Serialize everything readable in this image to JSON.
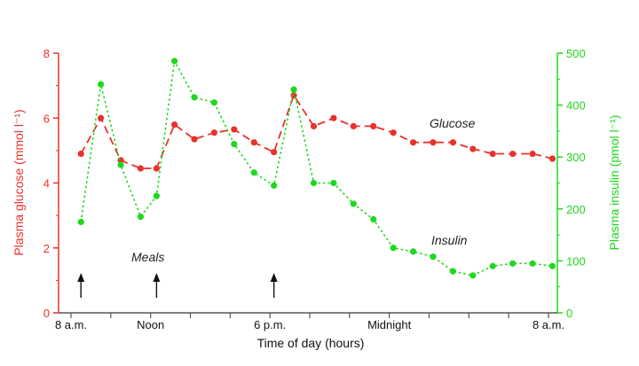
{
  "colors": {
    "glucose": "#e8322b",
    "insulin": "#1ed81e",
    "axis_x": "#555555",
    "annotation": "#222222"
  },
  "chart_data": {
    "type": "line",
    "xlabel": "Time of day (hours)",
    "x_ticks": [
      {
        "x": 0,
        "label": "8 a.m."
      },
      {
        "x": 4,
        "label": "Noon"
      },
      {
        "x": 10,
        "label": "6 p.m."
      },
      {
        "x": 16,
        "label": "Midnight"
      },
      {
        "x": 24,
        "label": "8 a.m."
      }
    ],
    "xlim": [
      0,
      24
    ],
    "left_axis": {
      "label": "Plasma glucose (mmol l⁻¹)",
      "ylim": [
        0,
        8
      ],
      "ticks": [
        "0",
        "2",
        "4",
        "6",
        "8"
      ]
    },
    "right_axis": {
      "label": "Plasma insulin (pmol l⁻¹)",
      "ylim": [
        0,
        500
      ],
      "ticks": [
        "0",
        "100",
        "200",
        "300",
        "400",
        "500"
      ]
    },
    "series": [
      {
        "name": "Glucose",
        "axis": "left",
        "style": "dashed",
        "points": [
          [
            0.5,
            4.9
          ],
          [
            1.5,
            6.0
          ],
          [
            2.5,
            4.7
          ],
          [
            3.5,
            4.45
          ],
          [
            4.3,
            4.45
          ],
          [
            5.2,
            5.8
          ],
          [
            6.2,
            5.35
          ],
          [
            7.2,
            5.55
          ],
          [
            8.2,
            5.65
          ],
          [
            9.2,
            5.25
          ],
          [
            10.2,
            4.95
          ],
          [
            11.2,
            6.7
          ],
          [
            12.2,
            5.75
          ],
          [
            13.2,
            6.0
          ],
          [
            14.2,
            5.75
          ],
          [
            15.2,
            5.75
          ],
          [
            16.2,
            5.55
          ],
          [
            17.2,
            5.25
          ],
          [
            18.2,
            5.25
          ],
          [
            19.2,
            5.25
          ],
          [
            20.2,
            5.05
          ],
          [
            21.2,
            4.9
          ],
          [
            22.2,
            4.9
          ],
          [
            23.2,
            4.9
          ],
          [
            24.2,
            4.75
          ]
        ]
      },
      {
        "name": "Insulin",
        "axis": "right",
        "style": "dotted",
        "points": [
          [
            0.5,
            175
          ],
          [
            1.5,
            440
          ],
          [
            2.5,
            285
          ],
          [
            3.5,
            185
          ],
          [
            4.3,
            225
          ],
          [
            5.2,
            485
          ],
          [
            6.2,
            415
          ],
          [
            7.2,
            405
          ],
          [
            8.2,
            325
          ],
          [
            9.2,
            270
          ],
          [
            10.2,
            245
          ],
          [
            11.2,
            430
          ],
          [
            12.2,
            250
          ],
          [
            13.2,
            250
          ],
          [
            14.2,
            210
          ],
          [
            15.2,
            180
          ],
          [
            16.2,
            125
          ],
          [
            17.2,
            118
          ],
          [
            18.2,
            108
          ],
          [
            19.2,
            80
          ],
          [
            20.2,
            72
          ],
          [
            21.2,
            90
          ],
          [
            22.2,
            95
          ],
          [
            23.2,
            95
          ],
          [
            24.2,
            90
          ]
        ]
      }
    ],
    "annotations": {
      "glucose_label": "Glucose",
      "insulin_label": "Insulin",
      "meals_label": "Meals",
      "meal_times": [
        0.5,
        4.3,
        10.2
      ]
    }
  }
}
